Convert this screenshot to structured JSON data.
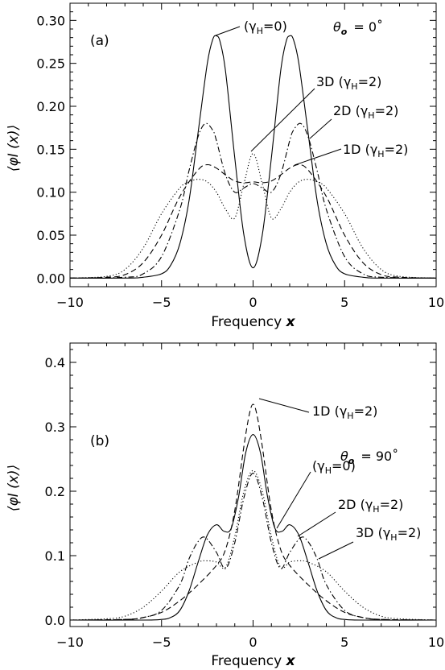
{
  "chart_data": [
    {
      "type": "line",
      "panel_label": "(a)",
      "angle_label": "θ",
      "angle_sub": "o",
      "angle_value": "= 0˚",
      "xlabel_text": "Frequency",
      "xlabel_var": "x",
      "ylabel": "⟨φI (x)⟩",
      "xlim": [
        -10,
        10
      ],
      "ylim": [
        -0.01,
        0.32
      ],
      "xticks": [
        -10,
        -5,
        0,
        5,
        10
      ],
      "xtick_labels": [
        "−10",
        "−5",
        "0",
        "5",
        "10"
      ],
      "yticks": [
        0.0,
        0.05,
        0.1,
        0.15,
        0.2,
        0.25,
        0.3
      ],
      "ytick_labels": [
        "0.00",
        "0.05",
        "0.10",
        "0.15",
        "0.20",
        "0.25",
        "0.30"
      ],
      "series": [
        {
          "style": "solid",
          "label": "(γH=0)",
          "x": [
            -10,
            -7,
            -6,
            -5,
            -4.5,
            -4,
            -3.5,
            -3,
            -2.5,
            -2.2,
            -2,
            -1.8,
            -1.5,
            -1,
            -0.5,
            0,
            0.5,
            1,
            1.5,
            1.8,
            2,
            2.2,
            2.5,
            3,
            3.5,
            4,
            4.5,
            5,
            6,
            7,
            10
          ],
          "y": [
            0,
            0,
            0.001,
            0.005,
            0.015,
            0.04,
            0.09,
            0.17,
            0.25,
            0.278,
            0.282,
            0.275,
            0.24,
            0.14,
            0.05,
            0.012,
            0.05,
            0.14,
            0.24,
            0.275,
            0.282,
            0.278,
            0.25,
            0.17,
            0.09,
            0.04,
            0.015,
            0.005,
            0.001,
            0,
            0
          ]
        },
        {
          "style": "dashdot",
          "label": "2D (γH=2)",
          "x": [
            -10,
            -7,
            -6,
            -5,
            -4,
            -3.5,
            -3,
            -2.6,
            -2.2,
            -2,
            -1.5,
            -1,
            -0.5,
            0,
            0.5,
            1,
            1.5,
            2,
            2.2,
            2.6,
            3,
            3.5,
            4,
            5,
            6,
            7,
            10
          ],
          "y": [
            0,
            0.001,
            0.005,
            0.025,
            0.08,
            0.125,
            0.165,
            0.18,
            0.172,
            0.16,
            0.12,
            0.1,
            0.105,
            0.11,
            0.105,
            0.1,
            0.12,
            0.16,
            0.172,
            0.18,
            0.165,
            0.125,
            0.08,
            0.025,
            0.005,
            0.001,
            0
          ]
        },
        {
          "style": "dashed",
          "label": "1D (γH=2)",
          "x": [
            -10,
            -8,
            -7,
            -6,
            -5,
            -4,
            -3,
            -2.5,
            -2,
            -1.5,
            -1,
            -0.5,
            0,
            0.5,
            1,
            1.5,
            2,
            2.5,
            3,
            4,
            5,
            6,
            7,
            8,
            10
          ],
          "y": [
            0,
            0.001,
            0.004,
            0.018,
            0.05,
            0.095,
            0.126,
            0.132,
            0.128,
            0.12,
            0.113,
            0.111,
            0.112,
            0.111,
            0.113,
            0.12,
            0.128,
            0.132,
            0.126,
            0.095,
            0.05,
            0.018,
            0.004,
            0.001,
            0
          ]
        },
        {
          "style": "dotted",
          "label": "3D (γH=2)",
          "x": [
            -10,
            -8,
            -7,
            -6,
            -5,
            -4,
            -3.5,
            -3,
            -2.5,
            -2,
            -1.5,
            -1,
            -0.5,
            0,
            0.5,
            1,
            1.5,
            2,
            2.5,
            3,
            3.5,
            4,
            5,
            6,
            7,
            8,
            10
          ],
          "y": [
            0,
            0.002,
            0.01,
            0.035,
            0.075,
            0.105,
            0.112,
            0.115,
            0.112,
            0.1,
            0.08,
            0.07,
            0.11,
            0.145,
            0.11,
            0.07,
            0.08,
            0.1,
            0.112,
            0.115,
            0.112,
            0.105,
            0.075,
            0.035,
            0.01,
            0.002,
            0
          ]
        }
      ],
      "annotations": [
        {
          "text": "(γH=0)",
          "sub": true
        },
        {
          "text": "3D (γH=2)",
          "sub": true
        },
        {
          "text": "2D (γH=2)",
          "sub": true
        },
        {
          "text": "1D (γH=2)",
          "sub": true
        }
      ]
    },
    {
      "type": "line",
      "panel_label": "(b)",
      "angle_label": "θ",
      "angle_sub": "o",
      "angle_value": "= 90˚",
      "xlabel_text": "Frequency",
      "xlabel_var": "x",
      "ylabel": "⟨φI (x)⟩",
      "xlim": [
        -10,
        10
      ],
      "ylim": [
        -0.01,
        0.43
      ],
      "xticks": [
        -10,
        -5,
        0,
        5,
        10
      ],
      "xtick_labels": [
        "−10",
        "−5",
        "0",
        "5",
        "10"
      ],
      "yticks": [
        0.0,
        0.1,
        0.2,
        0.3,
        0.4
      ],
      "ytick_labels": [
        "0.0",
        "0.1",
        "0.2",
        "0.3",
        "0.4"
      ],
      "series": [
        {
          "style": "dashed",
          "label": "1D (γH=2)",
          "x": [
            -10,
            -7,
            -6,
            -5,
            -4,
            -3,
            -2,
            -1.5,
            -1,
            -0.5,
            -0.2,
            0,
            0.2,
            0.5,
            1,
            1.5,
            2,
            3,
            4,
            5,
            6,
            7,
            10
          ],
          "y": [
            0,
            0.001,
            0.004,
            0.012,
            0.03,
            0.055,
            0.085,
            0.11,
            0.17,
            0.27,
            0.32,
            0.335,
            0.32,
            0.27,
            0.17,
            0.11,
            0.085,
            0.055,
            0.03,
            0.012,
            0.004,
            0.001,
            0
          ]
        },
        {
          "style": "solid",
          "label": "(γH=0)",
          "x": [
            -10,
            -6,
            -5,
            -4.5,
            -4,
            -3.5,
            -3,
            -2.5,
            -2,
            -1.6,
            -1.2,
            -0.8,
            -0.4,
            0,
            0.4,
            0.8,
            1.2,
            1.6,
            2,
            2.5,
            3,
            3.5,
            4,
            4.5,
            5,
            6,
            10
          ],
          "y": [
            0,
            0,
            0.001,
            0.004,
            0.015,
            0.045,
            0.09,
            0.132,
            0.148,
            0.138,
            0.142,
            0.19,
            0.26,
            0.288,
            0.26,
            0.19,
            0.142,
            0.138,
            0.148,
            0.132,
            0.09,
            0.045,
            0.015,
            0.004,
            0.001,
            0,
            0
          ]
        },
        {
          "style": "dashdot",
          "label": "2D (γH=2)",
          "x": [
            -10,
            -7,
            -6,
            -5,
            -4,
            -3.5,
            -3,
            -2.6,
            -2,
            -1.5,
            -1,
            -0.5,
            0,
            0.5,
            1,
            1.5,
            2,
            2.6,
            3,
            3.5,
            4,
            5,
            6,
            7,
            10
          ],
          "y": [
            0,
            0.001,
            0.004,
            0.015,
            0.055,
            0.095,
            0.122,
            0.128,
            0.105,
            0.08,
            0.12,
            0.19,
            0.228,
            0.19,
            0.12,
            0.08,
            0.105,
            0.128,
            0.122,
            0.095,
            0.055,
            0.015,
            0.004,
            0.001,
            0
          ]
        },
        {
          "style": "dotted",
          "label": "3D (γH=2)",
          "x": [
            -10,
            -8,
            -7,
            -6,
            -5,
            -4,
            -3,
            -2.5,
            -2,
            -1.5,
            -1,
            -0.5,
            0,
            0.5,
            1,
            1.5,
            2,
            2.5,
            3,
            4,
            5,
            6,
            7,
            8,
            10
          ],
          "y": [
            0,
            0.002,
            0.006,
            0.02,
            0.045,
            0.075,
            0.09,
            0.092,
            0.09,
            0.082,
            0.13,
            0.2,
            0.232,
            0.2,
            0.13,
            0.082,
            0.09,
            0.092,
            0.09,
            0.075,
            0.045,
            0.02,
            0.006,
            0.002,
            0
          ]
        }
      ],
      "annotations": [
        {
          "text": "1D (γH=2)",
          "sub": true
        },
        {
          "text": "(γH=0)",
          "sub": true
        },
        {
          "text": "2D (γH=2)",
          "sub": true
        },
        {
          "text": "3D (γH=2)",
          "sub": true
        }
      ]
    }
  ]
}
